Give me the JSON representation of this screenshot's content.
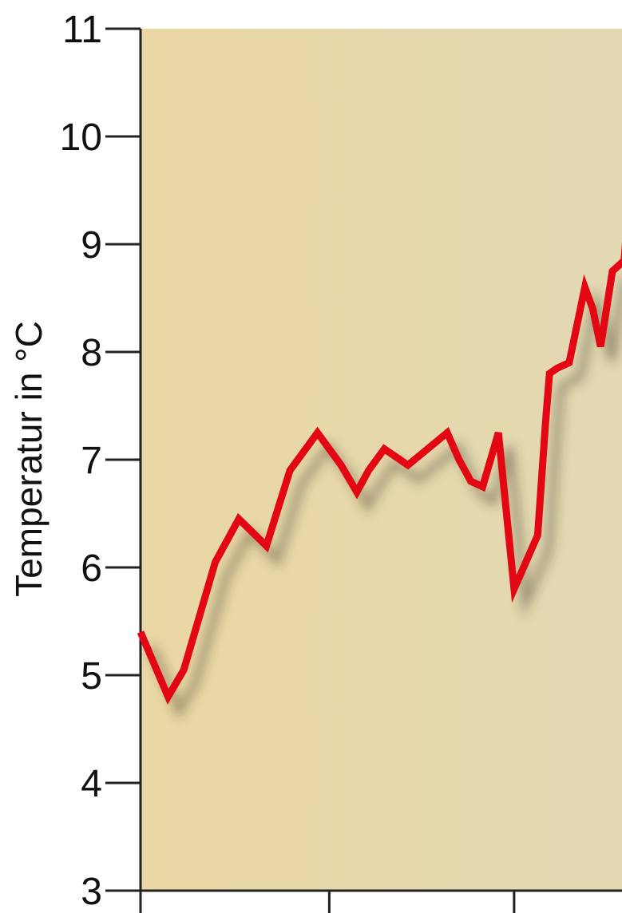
{
  "chart_data": {
    "type": "line",
    "title": "",
    "xlabel": "",
    "ylabel": "Temperatur in °C",
    "ylim": [
      3,
      11
    ],
    "yticks": [
      3,
      4,
      5,
      6,
      7,
      8,
      9,
      10,
      11
    ],
    "ytick_labels": [
      "3",
      "4",
      "5",
      "6",
      "7",
      "8",
      "9",
      "10",
      "11"
    ],
    "grid": false,
    "background_color": "#e6d9ac",
    "line_color": "#e30613",
    "series": [
      {
        "x": [
          0,
          3.5,
          5.5,
          9.5,
          12.5,
          16,
          19,
          22.5,
          25.5,
          27.5,
          29,
          31,
          34,
          39,
          40.5,
          42,
          43.5,
          45.5,
          47.5,
          50.5,
          51.5,
          52,
          53,
          54.5,
          56.5,
          57.5,
          58.5,
          60,
          61.5,
          62
        ],
        "y": [
          5.4,
          4.8,
          5.05,
          6.05,
          6.45,
          6.2,
          6.9,
          7.25,
          6.95,
          6.7,
          6.9,
          7.1,
          6.95,
          7.25,
          7.0,
          6.8,
          6.75,
          7.25,
          5.8,
          6.3,
          7.35,
          7.8,
          7.85,
          7.9,
          8.6,
          8.4,
          8.05,
          8.75,
          8.85,
          9.35
        ]
      }
    ]
  }
}
